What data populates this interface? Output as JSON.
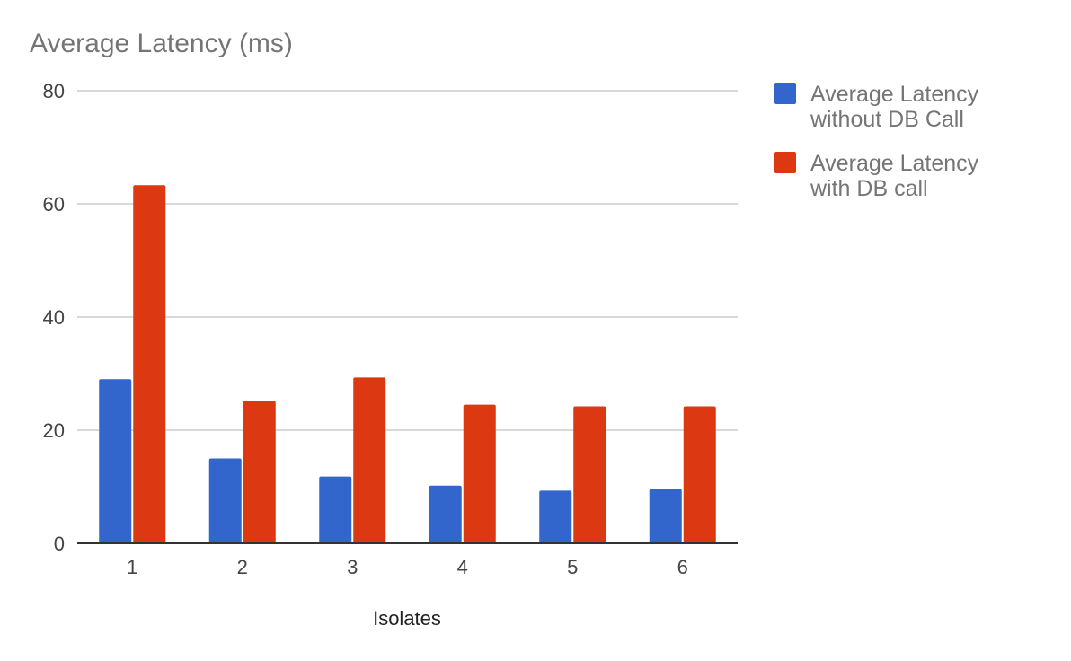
{
  "chart_data": {
    "type": "bar",
    "title": "Average Latency (ms)",
    "xlabel": "Isolates",
    "ylabel": "",
    "categories": [
      "1",
      "2",
      "3",
      "4",
      "5",
      "6"
    ],
    "series": [
      {
        "name": "Average Latency without DB Call",
        "legend_lines": [
          "Average Latency",
          "without DB Call"
        ],
        "color": "#3366cc",
        "values": [
          29,
          15,
          11.8,
          10.2,
          9.3,
          9.6
        ]
      },
      {
        "name": "Average Latency with DB call",
        "legend_lines": [
          "Average Latency",
          "with DB call"
        ],
        "color": "#dc3912",
        "values": [
          63.3,
          25.2,
          29.3,
          24.5,
          24.2,
          24.2
        ]
      }
    ],
    "ylim": [
      0,
      80
    ],
    "yticks": [
      0,
      20,
      40,
      60,
      80
    ],
    "grid": true,
    "legend_position": "right"
  },
  "colors": {
    "gridline": "#cccccc",
    "baseline": "#333333"
  }
}
